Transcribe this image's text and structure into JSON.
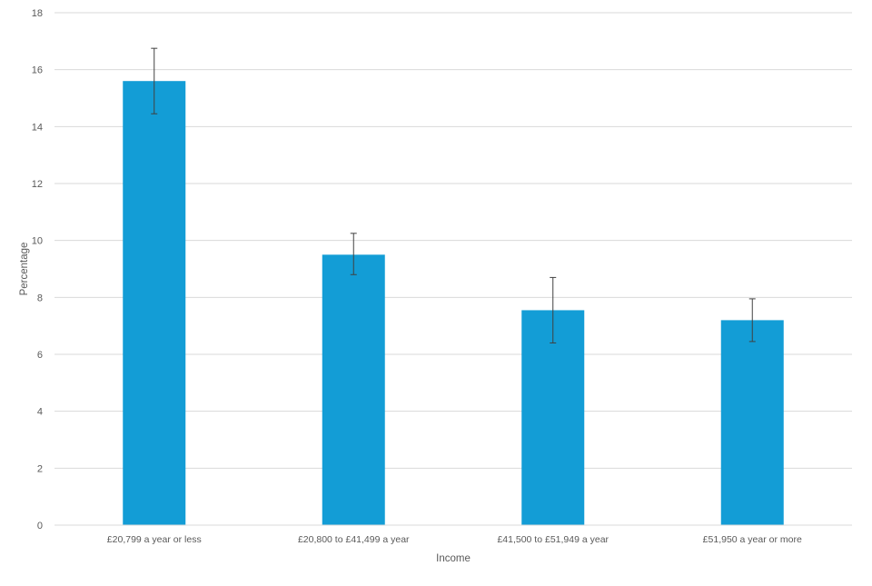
{
  "chart_data": {
    "type": "bar",
    "title": "",
    "xlabel": "Income",
    "ylabel": "Percentage",
    "ylim": [
      0,
      18
    ],
    "yticks": [
      0,
      2,
      4,
      6,
      8,
      10,
      12,
      14,
      16,
      18
    ],
    "grid": true,
    "categories": [
      "£20,799 a year or less",
      "£20,800 to £41,499 a year",
      "£41,500 to £51,949 a year",
      "£51,950 a year or more"
    ],
    "values": [
      15.6,
      9.5,
      7.55,
      7.2
    ],
    "error_low": [
      14.45,
      8.8,
      6.4,
      6.45
    ],
    "error_high": [
      16.75,
      10.25,
      8.7,
      7.95
    ],
    "colors": {
      "bar": "#139dd6",
      "grid": "#d9d9d9",
      "text": "#595959",
      "error_bar": "#404040"
    }
  }
}
